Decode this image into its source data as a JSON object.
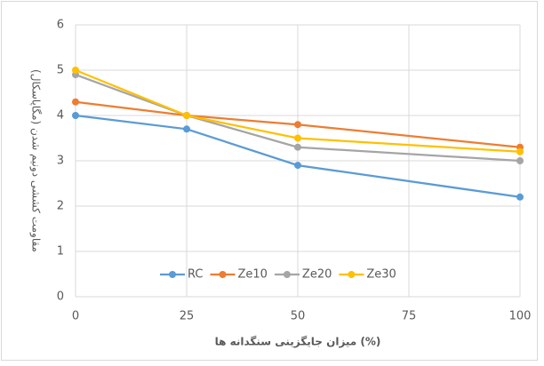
{
  "chart_data": {
    "type": "line",
    "y_label": "مقاومت کششی دونیم شدن (مگاپاسکال)",
    "x_label": "میزان جایگزینی سنگدانه ها (%)",
    "x": [
      0,
      25,
      50,
      100
    ],
    "series": [
      {
        "name": "RC",
        "color": "#5b9bd5",
        "values": [
          4,
          3.7,
          2.9,
          2.2
        ]
      },
      {
        "name": "Ze10",
        "color": "#ed7d31",
        "values": [
          4.3,
          4.0,
          3.8,
          3.3
        ]
      },
      {
        "name": "Ze20",
        "color": "#a5a5a5",
        "values": [
          4.9,
          4.0,
          3.3,
          3.0
        ]
      },
      {
        "name": "Ze30",
        "color": "#ffc000",
        "values": [
          5.0,
          4.0,
          3.5,
          3.2
        ]
      }
    ],
    "xlim": [
      0,
      100
    ],
    "xticks": [
      0,
      25,
      50,
      75,
      100
    ],
    "ylim": [
      0,
      6
    ],
    "yticks": [
      0,
      1,
      2,
      3,
      4,
      5,
      6
    ],
    "grid": true,
    "legend": "bottom"
  }
}
